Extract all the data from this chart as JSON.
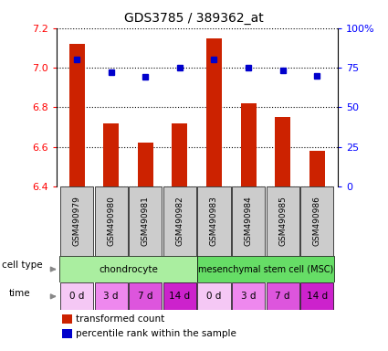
{
  "title": "GDS3785 / 389362_at",
  "samples": [
    "GSM490979",
    "GSM490980",
    "GSM490981",
    "GSM490982",
    "GSM490983",
    "GSM490984",
    "GSM490985",
    "GSM490986"
  ],
  "bar_values": [
    7.12,
    6.72,
    6.62,
    6.72,
    7.15,
    6.82,
    6.75,
    6.58
  ],
  "dot_values": [
    80,
    72,
    69,
    75,
    80,
    75,
    73,
    70
  ],
  "bar_color": "#cc2200",
  "dot_color": "#0000cc",
  "ylim_left": [
    6.4,
    7.2
  ],
  "ylim_right": [
    0,
    100
  ],
  "yticks_left": [
    6.4,
    6.6,
    6.8,
    7.0,
    7.2
  ],
  "yticks_right": [
    0,
    25,
    50,
    75,
    100
  ],
  "ytick_labels_right": [
    "0",
    "25",
    "50",
    "75",
    "100%"
  ],
  "cell_type_labels": [
    "chondrocyte",
    "mesenchymal stem cell (MSC)"
  ],
  "cell_type_colors": [
    "#aaeea0",
    "#66dd66"
  ],
  "time_labels": [
    "0 d",
    "3 d",
    "7 d",
    "14 d",
    "0 d",
    "3 d",
    "7 d",
    "14 d"
  ],
  "time_colors": [
    "#f5c8f5",
    "#ee88ee",
    "#dd55dd",
    "#cc22cc",
    "#f5c8f5",
    "#ee88ee",
    "#dd55dd",
    "#cc22cc"
  ],
  "legend_bar_label": "transformed count",
  "legend_dot_label": "percentile rank within the sample",
  "bg_color": "#ffffff",
  "sample_box_color": "#cccccc",
  "left_label_color": "#555555",
  "arrow_color": "#888888"
}
